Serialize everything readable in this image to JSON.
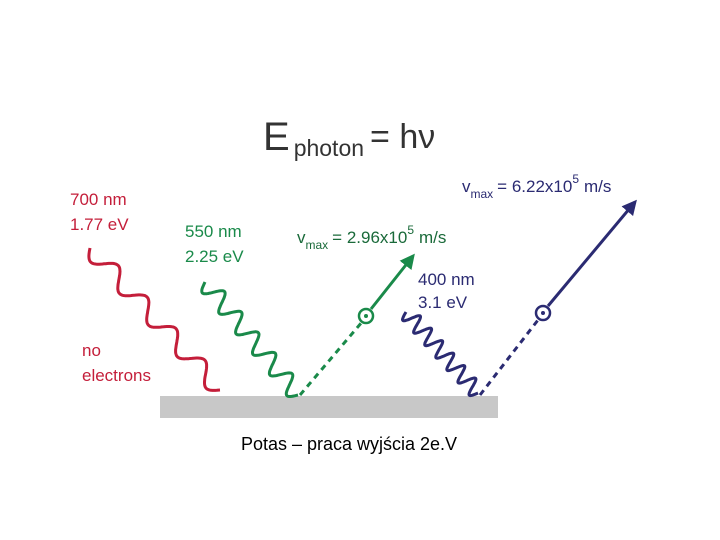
{
  "title": {
    "base": "E",
    "subscript": "photon",
    "rest": "= hν"
  },
  "red_light": {
    "wavelength": "700 nm",
    "energy": "1.77 eV",
    "result": [
      "no",
      "electrons"
    ]
  },
  "green_light": {
    "wavelength": "550 nm",
    "energy": "2.25 eV",
    "velocity": {
      "symbol": "v",
      "subscript": "max",
      "value": "= 2.96x10",
      "exponent": "5",
      "unit": "m/s"
    }
  },
  "violet_light": {
    "wavelength": "400 nm",
    "energy": "3.1 eV",
    "velocity": {
      "symbol": "v",
      "subscript": "max",
      "value": "= 6.22x10",
      "exponent": "5",
      "unit": "m/s"
    }
  },
  "caption": "Potas – praca wyjścia 2e.V"
}
